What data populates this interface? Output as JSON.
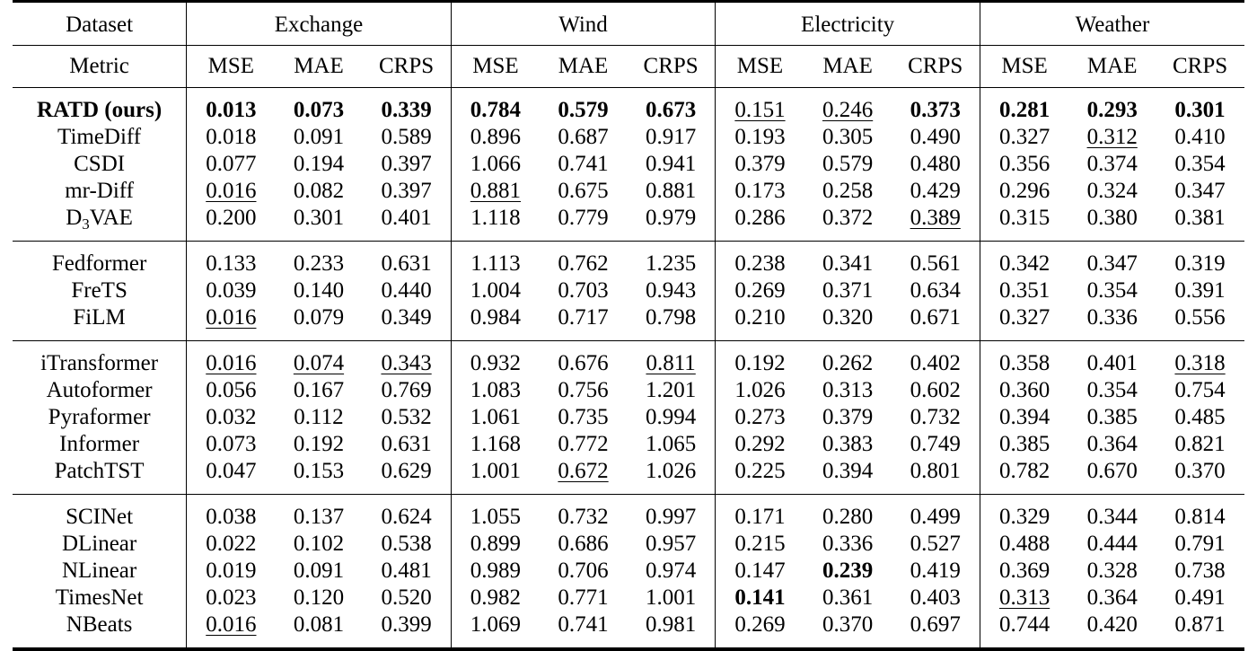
{
  "header": {
    "dataset_label": "Dataset",
    "metric_label": "Metric",
    "datasets": [
      "Exchange",
      "Wind",
      "Electricity",
      "Weather"
    ],
    "metrics": [
      "MSE",
      "MAE",
      "CRPS"
    ]
  },
  "groups": [
    {
      "rows": [
        {
          "model": "RATD (ours)",
          "model_bold": true,
          "values": [
            "0.013",
            "0.073",
            "0.339",
            "0.784",
            "0.579",
            "0.673",
            "0.151",
            "0.246",
            "0.373",
            "0.281",
            "0.293",
            "0.301"
          ],
          "bold": [
            0,
            1,
            2,
            3,
            4,
            5,
            8,
            9,
            10,
            11
          ],
          "underline": [
            6,
            7
          ]
        },
        {
          "model": "TimeDiff",
          "values": [
            "0.018",
            "0.091",
            "0.589",
            "0.896",
            "0.687",
            "0.917",
            "0.193",
            "0.305",
            "0.490",
            "0.327",
            "0.312",
            "0.410"
          ],
          "bold": [],
          "underline": [
            10
          ]
        },
        {
          "model": "CSDI",
          "values": [
            "0.077",
            "0.194",
            "0.397",
            "1.066",
            "0.741",
            "0.941",
            "0.379",
            "0.579",
            "0.480",
            "0.356",
            "0.374",
            "0.354"
          ],
          "bold": [],
          "underline": []
        },
        {
          "model": "mr-Diff",
          "values": [
            "0.016",
            "0.082",
            "0.397",
            "0.881",
            "0.675",
            "0.881",
            "0.173",
            "0.258",
            "0.429",
            "0.296",
            "0.324",
            "0.347"
          ],
          "bold": [],
          "underline": [
            0,
            3
          ]
        },
        {
          "model": "D",
          "model_sub": "3",
          "model_suffix": "VAE",
          "values": [
            "0.200",
            "0.301",
            "0.401",
            "1.118",
            "0.779",
            "0.979",
            "0.286",
            "0.372",
            "0.389",
            "0.315",
            "0.380",
            "0.381"
          ],
          "bold": [],
          "underline": [
            8
          ]
        }
      ]
    },
    {
      "rows": [
        {
          "model": "Fedformer",
          "values": [
            "0.133",
            "0.233",
            "0.631",
            "1.113",
            "0.762",
            "1.235",
            "0.238",
            "0.341",
            "0.561",
            "0.342",
            "0.347",
            "0.319"
          ],
          "bold": [],
          "underline": []
        },
        {
          "model": "FreTS",
          "values": [
            "0.039",
            "0.140",
            "0.440",
            "1.004",
            "0.703",
            "0.943",
            "0.269",
            "0.371",
            "0.634",
            "0.351",
            "0.354",
            "0.391"
          ],
          "bold": [],
          "underline": []
        },
        {
          "model": "FiLM",
          "values": [
            "0.016",
            "0.079",
            "0.349",
            "0.984",
            "0.717",
            "0.798",
            "0.210",
            "0.320",
            "0.671",
            "0.327",
            "0.336",
            "0.556"
          ],
          "bold": [],
          "underline": [
            0
          ]
        }
      ]
    },
    {
      "rows": [
        {
          "model": "iTransformer",
          "values": [
            "0.016",
            "0.074",
            "0.343",
            "0.932",
            "0.676",
            "0.811",
            "0.192",
            "0.262",
            "0.402",
            "0.358",
            "0.401",
            "0.318"
          ],
          "bold": [],
          "underline": [
            0,
            1,
            2,
            5,
            11
          ]
        },
        {
          "model": "Autoformer",
          "values": [
            "0.056",
            "0.167",
            "0.769",
            "1.083",
            "0.756",
            "1.201",
            "1.026",
            "0.313",
            "0.602",
            "0.360",
            "0.354",
            "0.754"
          ],
          "bold": [],
          "underline": []
        },
        {
          "model": "Pyraformer",
          "values": [
            "0.032",
            "0.112",
            "0.532",
            "1.061",
            "0.735",
            "0.994",
            "0.273",
            "0.379",
            "0.732",
            "0.394",
            "0.385",
            "0.485"
          ],
          "bold": [],
          "underline": []
        },
        {
          "model": "Informer",
          "values": [
            "0.073",
            "0.192",
            "0.631",
            "1.168",
            "0.772",
            "1.065",
            "0.292",
            "0.383",
            "0.749",
            "0.385",
            "0.364",
            "0.821"
          ],
          "bold": [],
          "underline": []
        },
        {
          "model": "PatchTST",
          "values": [
            "0.047",
            "0.153",
            "0.629",
            "1.001",
            "0.672",
            "1.026",
            "0.225",
            "0.394",
            "0.801",
            "0.782",
            "0.670",
            "0.370"
          ],
          "bold": [],
          "underline": [
            4
          ]
        }
      ]
    },
    {
      "rows": [
        {
          "model": "SCINet",
          "values": [
            "0.038",
            "0.137",
            "0.624",
            "1.055",
            "0.732",
            "0.997",
            "0.171",
            "0.280",
            "0.499",
            "0.329",
            "0.344",
            "0.814"
          ],
          "bold": [],
          "underline": []
        },
        {
          "model": "DLinear",
          "values": [
            "0.022",
            "0.102",
            "0.538",
            "0.899",
            "0.686",
            "0.957",
            "0.215",
            "0.336",
            "0.527",
            "0.488",
            "0.444",
            "0.791"
          ],
          "bold": [],
          "underline": []
        },
        {
          "model": "NLinear",
          "values": [
            "0.019",
            "0.091",
            "0.481",
            "0.989",
            "0.706",
            "0.974",
            "0.147",
            "0.239",
            "0.419",
            "0.369",
            "0.328",
            "0.738"
          ],
          "bold": [
            7
          ],
          "underline": []
        },
        {
          "model": "TimesNet",
          "values": [
            "0.023",
            "0.120",
            "0.520",
            "0.982",
            "0.771",
            "1.001",
            "0.141",
            "0.361",
            "0.403",
            "0.313",
            "0.364",
            "0.491"
          ],
          "bold": [
            6
          ],
          "underline": [
            9
          ]
        },
        {
          "model": "NBeats",
          "values": [
            "0.016",
            "0.081",
            "0.399",
            "1.069",
            "0.741",
            "0.981",
            "0.269",
            "0.370",
            "0.697",
            "0.744",
            "0.420",
            "0.871"
          ],
          "bold": [],
          "underline": [
            0
          ]
        }
      ]
    }
  ]
}
